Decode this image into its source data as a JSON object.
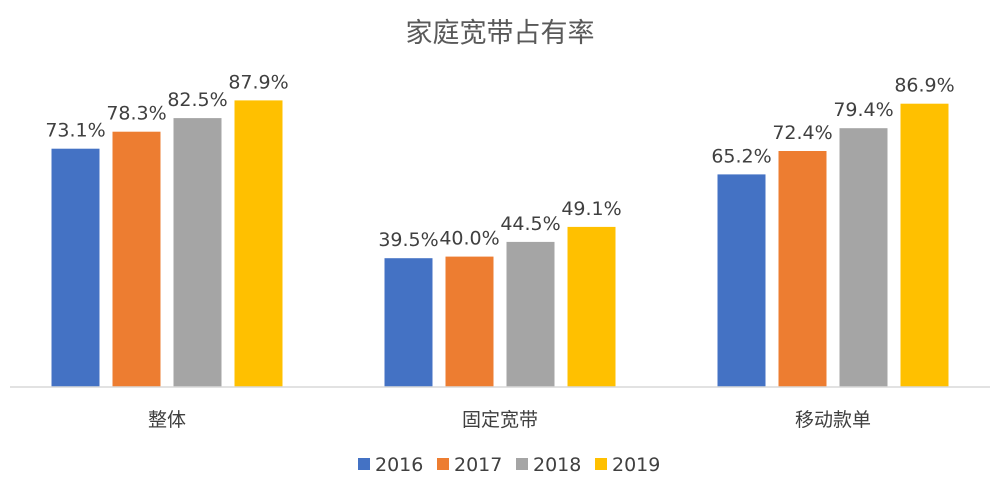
{
  "chart_data": {
    "type": "bar",
    "title": "家庭宽带占有率",
    "categories": [
      "整体",
      "固定宽带",
      "移动款单"
    ],
    "series": [
      {
        "name": "2016",
        "color": "#4472C4",
        "values": [
          73.1,
          39.5,
          65.2
        ],
        "labels": [
          "73.1%",
          "39.5%",
          "65.2%"
        ]
      },
      {
        "name": "2017",
        "color": "#ED7D31",
        "values": [
          78.3,
          40.0,
          72.4
        ],
        "labels": [
          "78.3%",
          "40.0%",
          "72.4%"
        ]
      },
      {
        "name": "2018",
        "color": "#A5A5A5",
        "values": [
          82.5,
          44.5,
          79.4
        ],
        "labels": [
          "82.5%",
          "44.5%",
          "79.4%"
        ]
      },
      {
        "name": "2019",
        "color": "#FFC000",
        "values": [
          87.9,
          49.1,
          86.9
        ],
        "labels": [
          "87.9%",
          "49.1%",
          "86.9%"
        ]
      }
    ],
    "ylim": [
      0,
      100
    ],
    "unit": "%",
    "grid": false,
    "legend": "bottom-center"
  }
}
